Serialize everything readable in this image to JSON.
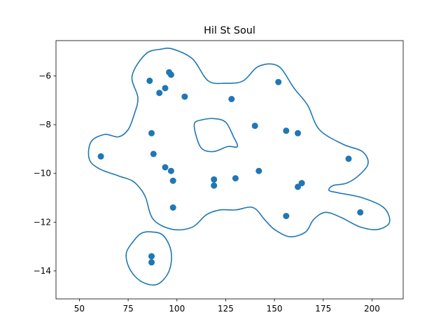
{
  "chart_data": {
    "type": "scatter",
    "title": "Hil St Soul",
    "xlabel": "",
    "ylabel": "",
    "xlim": [
      38,
      216
    ],
    "ylim": [
      -15.15,
      -4.55
    ],
    "grid": false,
    "legend": "none",
    "xticks": [
      50,
      75,
      100,
      125,
      150,
      175,
      200
    ],
    "yticks": [
      -14,
      -12,
      -10,
      -8,
      -6
    ],
    "xtick_labels": [
      "50",
      "75",
      "100",
      "125",
      "150",
      "175",
      "200"
    ],
    "ytick_labels": [
      "−14",
      "−12",
      "−10",
      "−8",
      "−6"
    ],
    "color": "#1f77b4",
    "points": [
      {
        "x": 96,
        "y": -5.85
      },
      {
        "x": 97,
        "y": -5.95
      },
      {
        "x": 86,
        "y": -6.2
      },
      {
        "x": 94,
        "y": -6.5
      },
      {
        "x": 91,
        "y": -6.7
      },
      {
        "x": 104,
        "y": -6.85
      },
      {
        "x": 128,
        "y": -6.95
      },
      {
        "x": 152,
        "y": -6.25
      },
      {
        "x": 140,
        "y": -8.05
      },
      {
        "x": 156,
        "y": -8.25
      },
      {
        "x": 162,
        "y": -8.35
      },
      {
        "x": 87,
        "y": -8.35
      },
      {
        "x": 88,
        "y": -9.2
      },
      {
        "x": 61,
        "y": -9.3
      },
      {
        "x": 94,
        "y": -9.75
      },
      {
        "x": 97,
        "y": -9.9
      },
      {
        "x": 98,
        "y": -10.3
      },
      {
        "x": 119,
        "y": -10.25
      },
      {
        "x": 119,
        "y": -10.5
      },
      {
        "x": 130,
        "y": -10.2
      },
      {
        "x": 142,
        "y": -9.9
      },
      {
        "x": 188,
        "y": -9.4
      },
      {
        "x": 164,
        "y": -10.4
      },
      {
        "x": 162,
        "y": -10.55
      },
      {
        "x": 98,
        "y": -11.4
      },
      {
        "x": 156,
        "y": -11.75
      },
      {
        "x": 194,
        "y": -11.6
      },
      {
        "x": 87,
        "y": -13.4
      },
      {
        "x": 87,
        "y": -13.65
      }
    ],
    "contours": [
      [
        [
          98,
          -4.9
        ],
        [
          108,
          -5.3
        ],
        [
          116,
          -6.2
        ],
        [
          125,
          -6.3
        ],
        [
          134,
          -6.2
        ],
        [
          142,
          -5.6
        ],
        [
          152,
          -5.6
        ],
        [
          160,
          -6.5
        ],
        [
          167,
          -7.2
        ],
        [
          173,
          -8.2
        ],
        [
          185,
          -8.8
        ],
        [
          195,
          -9.1
        ],
        [
          198,
          -9.6
        ],
        [
          193,
          -10.1
        ],
        [
          187,
          -10.4
        ],
        [
          180,
          -10.5
        ],
        [
          178,
          -10.7
        ],
        [
          183,
          -10.8
        ],
        [
          195,
          -11
        ],
        [
          206,
          -11.4
        ],
        [
          209,
          -12
        ],
        [
          203,
          -12.3
        ],
        [
          194,
          -12.2
        ],
        [
          184,
          -11.8
        ],
        [
          176,
          -11.6
        ],
        [
          170,
          -11.9
        ],
        [
          166,
          -12.4
        ],
        [
          158,
          -12.6
        ],
        [
          150,
          -12.3
        ],
        [
          145,
          -11.9
        ],
        [
          139,
          -11.4
        ],
        [
          130,
          -11.5
        ],
        [
          122,
          -11.5
        ],
        [
          115,
          -11.7
        ],
        [
          108,
          -12.2
        ],
        [
          98,
          -12.3
        ],
        [
          88,
          -11.9
        ],
        [
          84,
          -11
        ],
        [
          81,
          -10.6
        ],
        [
          77,
          -10.3
        ],
        [
          70,
          -10.1
        ],
        [
          60,
          -9.8
        ],
        [
          55,
          -9.4
        ],
        [
          56,
          -8.7
        ],
        [
          63,
          -8.4
        ],
        [
          70,
          -8.5
        ],
        [
          75,
          -8.2
        ],
        [
          78,
          -7.6
        ],
        [
          80,
          -6.9
        ],
        [
          77,
          -6
        ],
        [
          84,
          -5.1
        ],
        [
          92,
          -4.9
        ]
      ],
      [
        [
          119,
          -7.75
        ],
        [
          125,
          -7.9
        ],
        [
          129,
          -8.5
        ],
        [
          131,
          -8.9
        ],
        [
          126,
          -8.9
        ],
        [
          119,
          -9.1
        ],
        [
          113,
          -9
        ],
        [
          110,
          -8.5
        ],
        [
          109,
          -7.95
        ],
        [
          113,
          -7.8
        ]
      ],
      [
        [
          87,
          -12.4
        ],
        [
          93,
          -12.55
        ],
        [
          97,
          -13.2
        ],
        [
          96,
          -14
        ],
        [
          90,
          -14.55
        ],
        [
          82,
          -14.45
        ],
        [
          76,
          -13.95
        ],
        [
          74,
          -13.3
        ],
        [
          78,
          -12.75
        ],
        [
          82,
          -12.45
        ]
      ]
    ]
  }
}
